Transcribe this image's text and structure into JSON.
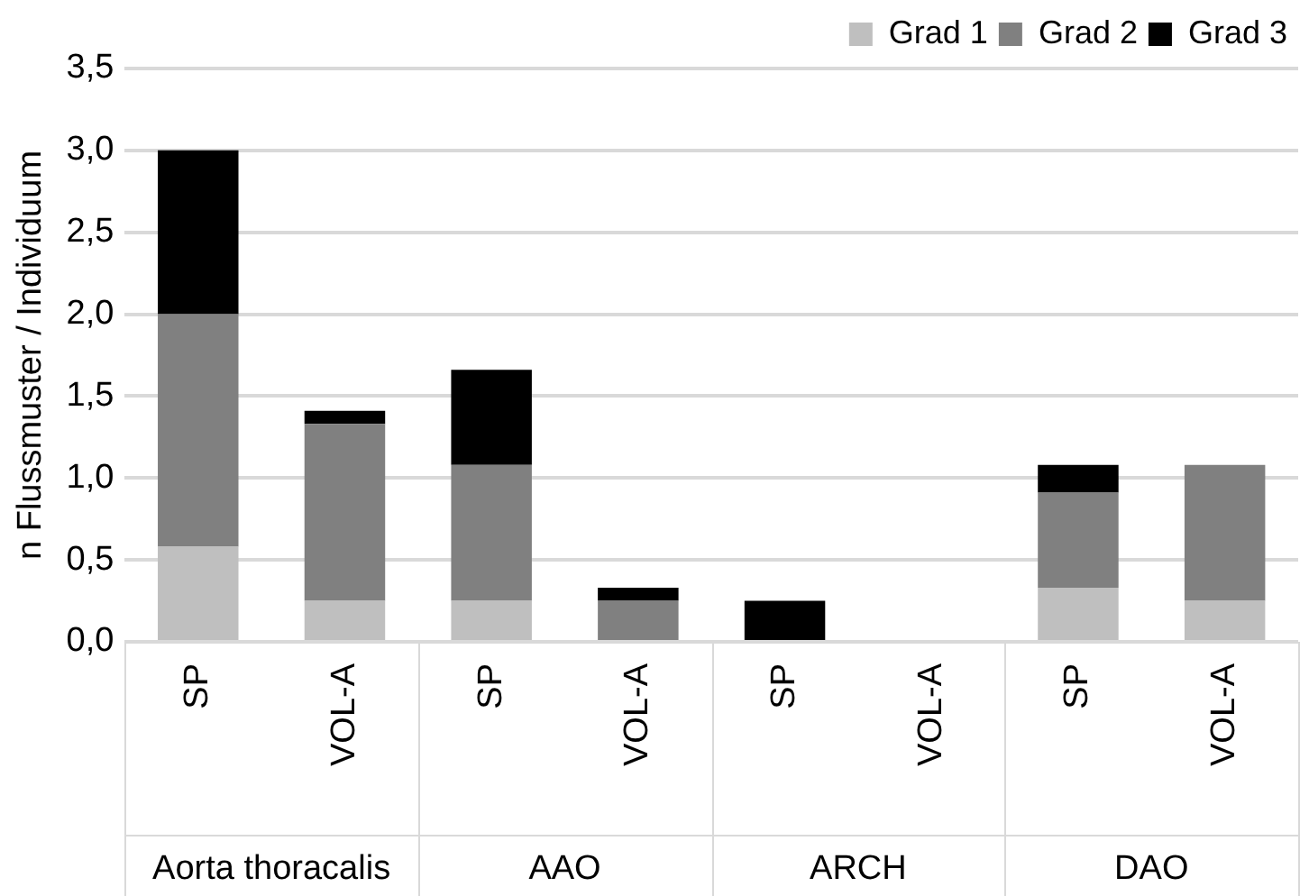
{
  "chart_data": {
    "type": "bar",
    "stacked": true,
    "ylabel": "n Flussmuster / Individuum",
    "categories": [
      "SP",
      "VOL-A",
      "SP",
      "VOL-A",
      "SP",
      "VOL-A",
      "SP",
      "VOL-A"
    ],
    "series": [
      {
        "name": "Grad 1",
        "color": "#bfbfbf",
        "values": [
          0.58,
          0.25,
          0.25,
          0,
          0,
          0,
          0.33,
          0.25
        ]
      },
      {
        "name": "Grad 2",
        "color": "#808080",
        "values": [
          1.42,
          1.08,
          0.83,
          0.25,
          0,
          0,
          0.58,
          0.83
        ]
      },
      {
        "name": "Grad 3",
        "color": "#000000",
        "values": [
          1.0,
          0.08,
          0.58,
          0.08,
          0.25,
          0,
          0.17,
          0
        ]
      }
    ],
    "annotations": [
      "Aorta thoracalis",
      "AAO",
      "ARCH",
      "DAO"
    ],
    "ylim": [
      0,
      3.5
    ],
    "yticks": [
      {
        "value": 0,
        "label": "0,0"
      },
      {
        "value": 0.5,
        "label": "0,5"
      },
      {
        "value": 1,
        "label": "1,0"
      },
      {
        "value": 1.5,
        "label": "1,5"
      },
      {
        "value": 2,
        "label": "2,0"
      },
      {
        "value": 2.5,
        "label": "2,5"
      },
      {
        "value": 3,
        "label": "3,0"
      },
      {
        "value": 3.5,
        "label": "3,5"
      }
    ],
    "grid": "y",
    "legend": "top right"
  }
}
